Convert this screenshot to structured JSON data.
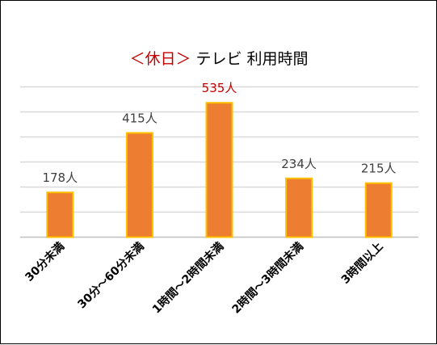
{
  "chart_data": {
    "type": "bar",
    "title": {
      "prefix": "＜休日＞",
      "text": "テレビ 利用時間",
      "prefix_color": "#c00000",
      "text_color": "#000000"
    },
    "categories": [
      "30分未満",
      "30分～60分未満",
      "1時間～2時間未満",
      "2時間～3時間未満",
      "3時間以上"
    ],
    "values": [
      178,
      415,
      535,
      234,
      215
    ],
    "data_labels": [
      "178人",
      "415人",
      "535人",
      "234人",
      "215人"
    ],
    "unit": "人",
    "ylim": [
      0,
      600
    ],
    "grid": true,
    "axis_labels_visible": false,
    "highlight_index": 2,
    "colors": {
      "bar_fill": "#ed7d31",
      "bar_border": "#ffc000",
      "label_default": "#404040",
      "label_highlight": "#c00000",
      "grid": "#d9d9d9",
      "axis": "#bfbfbf"
    }
  }
}
